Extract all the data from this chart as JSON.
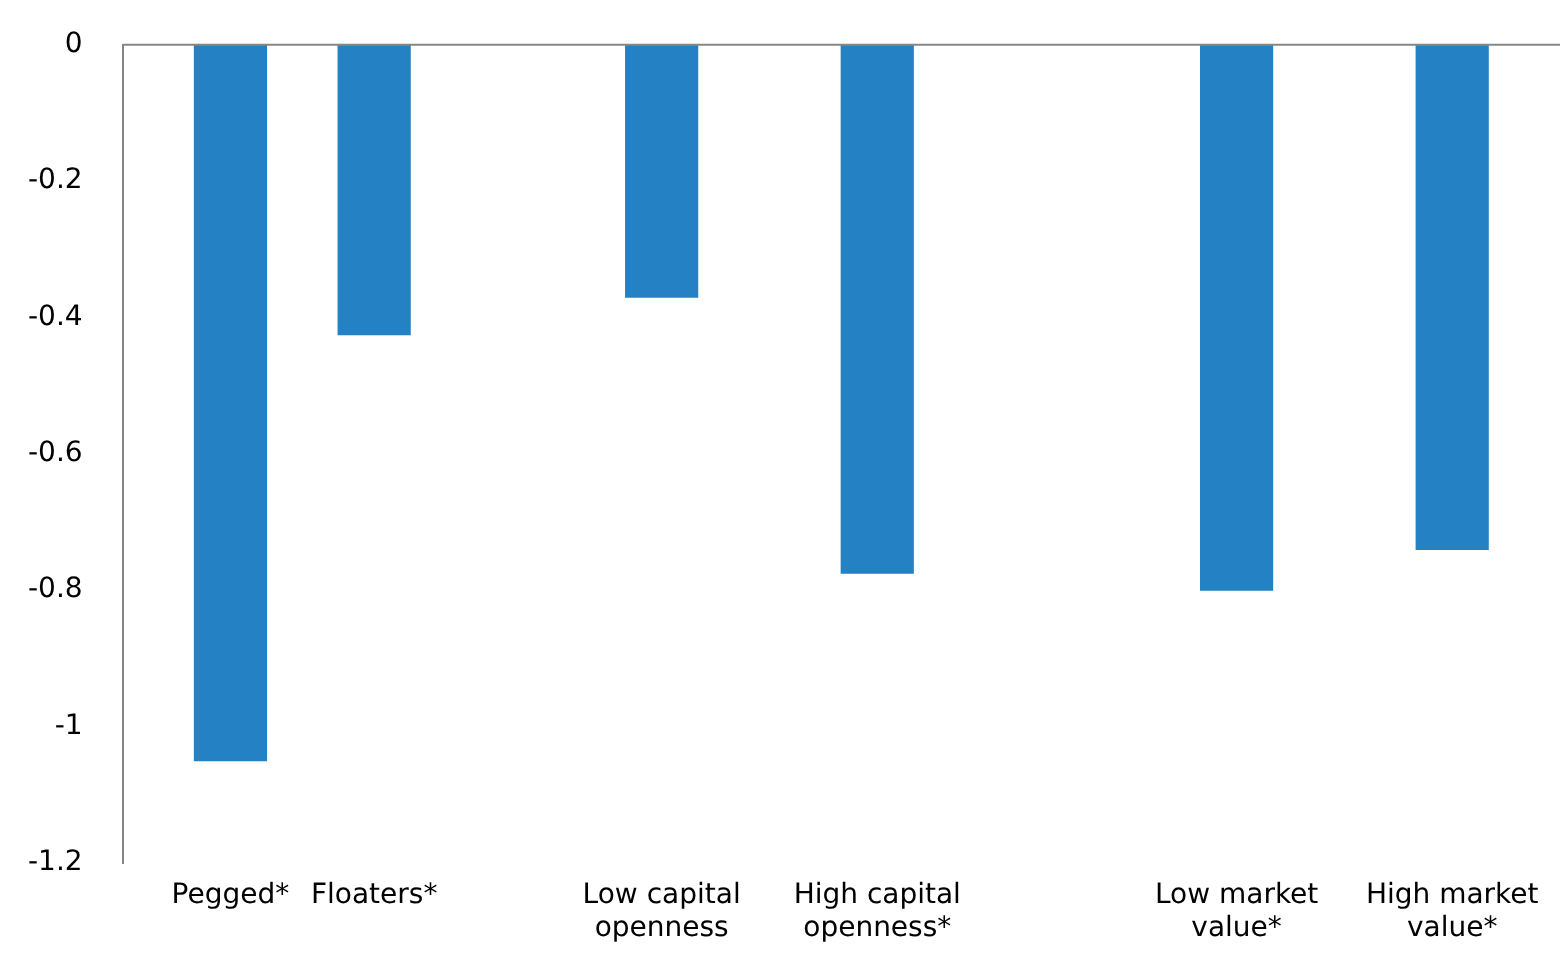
{
  "chart_data": {
    "type": "bar",
    "categories": [
      null,
      "Pegged*",
      null,
      "Floaters*",
      null,
      null,
      null,
      "Low capital openness",
      null,
      null,
      "High capital openness*",
      null,
      null,
      null,
      null,
      "Low market value*",
      null,
      null,
      "High market value*",
      null
    ],
    "values": [
      null,
      -1.05,
      null,
      -0.425,
      null,
      null,
      null,
      -0.37,
      null,
      null,
      -0.775,
      null,
      null,
      null,
      null,
      -0.8,
      null,
      null,
      -0.74,
      null
    ],
    "color": "#2481c4",
    "ylim": [
      -1.2,
      0
    ],
    "yticks": [
      0,
      -0.2,
      -0.4,
      -0.6,
      -0.8,
      -1,
      -1.2
    ],
    "grid": false,
    "legend": false
  }
}
